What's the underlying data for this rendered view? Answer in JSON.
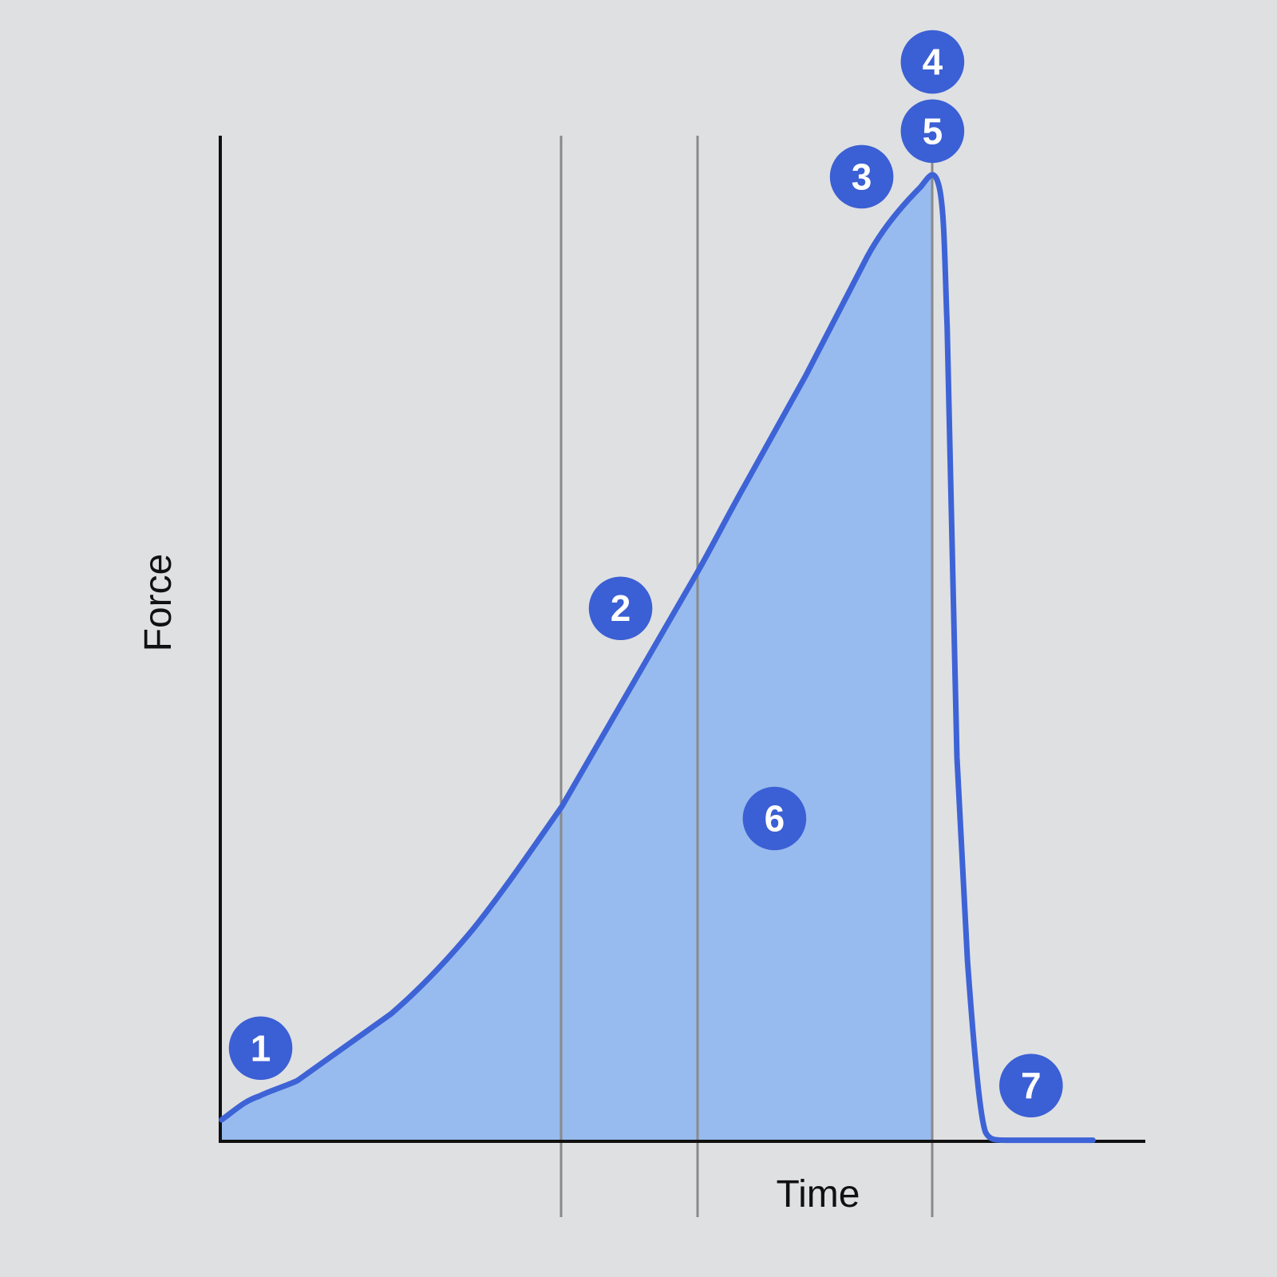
{
  "axes": {
    "y_label": "Force",
    "x_label": "Time"
  },
  "colors": {
    "background": "#dfe0e2",
    "area_fill": "#97bbee",
    "curve": "#3d63d6",
    "marker": "#3b5fd4",
    "marker_text": "#ffffff",
    "guide_line": "#8a8a8a",
    "axis": "#111111"
  },
  "markers": [
    {
      "id": "1",
      "label": "1"
    },
    {
      "id": "2",
      "label": "2"
    },
    {
      "id": "3",
      "label": "3"
    },
    {
      "id": "4",
      "label": "4"
    },
    {
      "id": "5",
      "label": "5"
    },
    {
      "id": "6",
      "label": "6"
    },
    {
      "id": "7",
      "label": "7"
    }
  ]
}
